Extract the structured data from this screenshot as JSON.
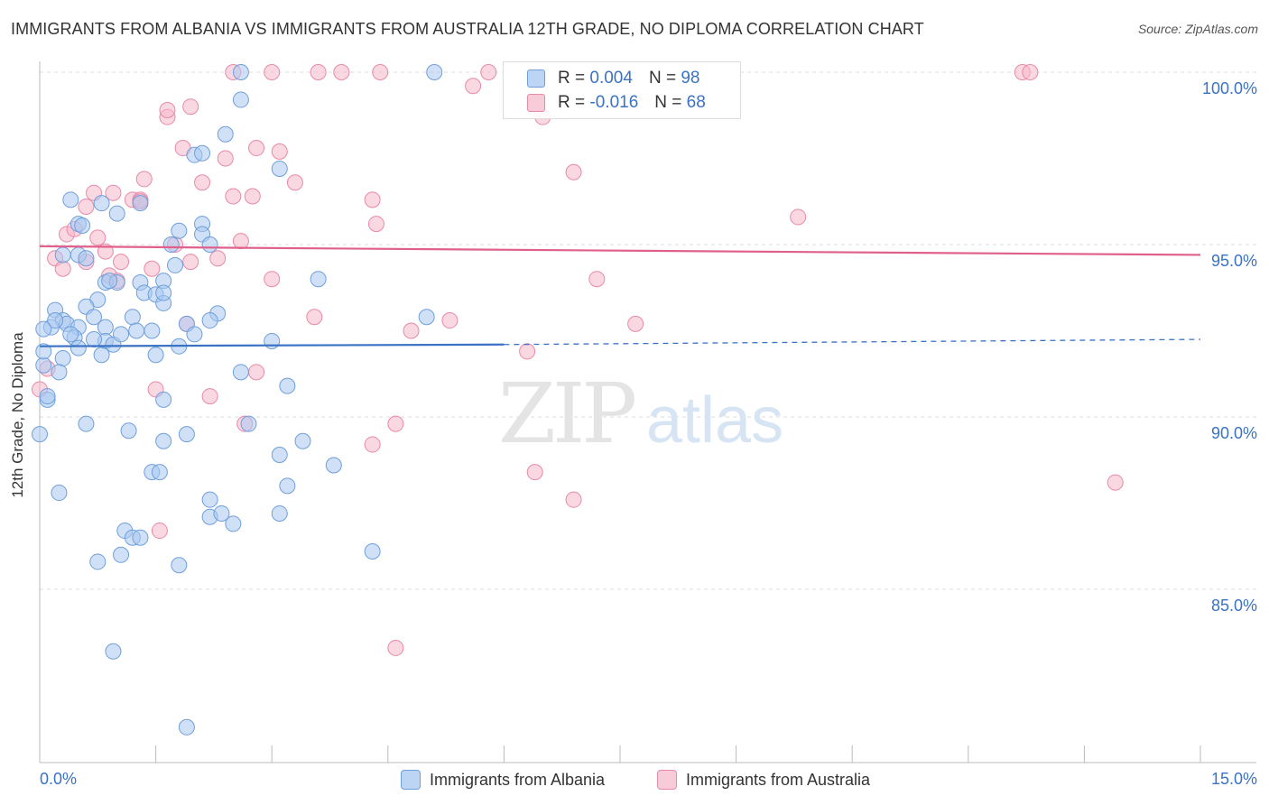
{
  "title": "IMMIGRANTS FROM ALBANIA VS IMMIGRANTS FROM AUSTRALIA 12TH GRADE, NO DIPLOMA CORRELATION CHART",
  "source": "Source: ZipAtlas.com",
  "watermark": {
    "zip": "ZIP",
    "atlas": "atlas"
  },
  "legend": {
    "albania": {
      "r_label": "R =",
      "r_value": "0.004",
      "n_label": "N =",
      "n_value": "98",
      "color": "#a9c8f0"
    },
    "australia": {
      "r_label": "R =",
      "r_value": "-0.016",
      "n_label": "N =",
      "n_value": "68",
      "color": "#f5b8cb"
    }
  },
  "bottom_legend": {
    "albania": "Immigrants from Albania",
    "australia": "Immigrants from Australia"
  },
  "chart_data": {
    "type": "scatter",
    "title": "IMMIGRANTS FROM ALBANIA VS IMMIGRANTS FROM AUSTRALIA 12TH GRADE, NO DIPLOMA CORRELATION CHART",
    "xlabel": "",
    "ylabel": "12th Grade, No Diploma",
    "xlim": [
      0,
      15
    ],
    "ylim": [
      80.5,
      101.2
    ],
    "x_tick_labels": [
      "0.0%",
      "15.0%"
    ],
    "y_ticks": [
      85,
      90,
      95,
      100
    ],
    "y_tick_labels": [
      "85.0%",
      "90.0%",
      "95.0%",
      "100.0%"
    ],
    "grid": true,
    "colors": {
      "albania_fill": "#a9c8f0",
      "albania_stroke": "#6f9fdb",
      "albania_line": "#3a72c4",
      "australia_fill": "#f5b8cb",
      "australia_stroke": "#e88aa8",
      "australia_line": "#e0608c",
      "axis_text": "#3a72c4"
    },
    "series": [
      {
        "name": "Immigrants from Albania",
        "trend": {
          "x0": 0,
          "y0": 92.05,
          "x1": 6.0,
          "y1": 92.1,
          "dash_x1": 15,
          "dash_y1": 92.25
        },
        "points": [
          [
            2.6,
            100.0
          ],
          [
            5.1,
            100.0
          ],
          [
            2.6,
            99.2
          ],
          [
            2.4,
            98.2
          ],
          [
            2.0,
            97.6
          ],
          [
            3.1,
            97.2
          ],
          [
            0.4,
            96.3
          ],
          [
            0.8,
            96.2
          ],
          [
            1.3,
            96.2
          ],
          [
            1.0,
            95.9
          ],
          [
            0.5,
            95.6
          ],
          [
            2.1,
            95.6
          ],
          [
            1.8,
            95.4
          ],
          [
            2.1,
            95.3
          ],
          [
            1.7,
            95.0
          ],
          [
            2.2,
            95.0
          ],
          [
            0.5,
            94.7
          ],
          [
            0.6,
            94.6
          ],
          [
            0.85,
            93.9
          ],
          [
            1.0,
            93.9
          ],
          [
            1.3,
            93.9
          ],
          [
            1.6,
            93.95
          ],
          [
            3.6,
            94.0
          ],
          [
            1.35,
            93.6
          ],
          [
            1.5,
            93.55
          ],
          [
            1.6,
            93.3
          ],
          [
            0.75,
            93.4
          ],
          [
            0.6,
            93.2
          ],
          [
            0.2,
            93.1
          ],
          [
            0.7,
            92.9
          ],
          [
            1.2,
            92.9
          ],
          [
            2.3,
            93.0
          ],
          [
            2.2,
            92.8
          ],
          [
            0.3,
            92.8
          ],
          [
            0.35,
            92.7
          ],
          [
            0.5,
            92.6
          ],
          [
            0.85,
            92.6
          ],
          [
            1.25,
            92.5
          ],
          [
            1.45,
            92.5
          ],
          [
            1.9,
            92.7
          ],
          [
            2.0,
            92.4
          ],
          [
            5.0,
            92.9
          ],
          [
            0.15,
            92.6
          ],
          [
            0.45,
            92.3
          ],
          [
            0.85,
            92.2
          ],
          [
            0.95,
            92.1
          ],
          [
            1.8,
            92.05
          ],
          [
            3.0,
            92.2
          ],
          [
            0.4,
            92.4
          ],
          [
            0.7,
            92.25
          ],
          [
            0.3,
            91.7
          ],
          [
            0.05,
            91.5
          ],
          [
            0.25,
            91.3
          ],
          [
            0.05,
            91.9
          ],
          [
            1.5,
            91.8
          ],
          [
            0.8,
            91.8
          ],
          [
            2.6,
            91.3
          ],
          [
            3.2,
            90.9
          ],
          [
            0.1,
            90.5
          ],
          [
            1.6,
            90.5
          ],
          [
            0.6,
            89.8
          ],
          [
            1.15,
            89.6
          ],
          [
            1.6,
            89.3
          ],
          [
            1.9,
            89.5
          ],
          [
            2.7,
            89.8
          ],
          [
            3.4,
            89.3
          ],
          [
            3.1,
            88.9
          ],
          [
            3.8,
            88.6
          ],
          [
            1.45,
            88.4
          ],
          [
            1.55,
            88.4
          ],
          [
            3.2,
            88.0
          ],
          [
            0.25,
            87.8
          ],
          [
            2.2,
            87.6
          ],
          [
            2.2,
            87.1
          ],
          [
            2.5,
            86.9
          ],
          [
            3.1,
            87.2
          ],
          [
            2.35,
            87.2
          ],
          [
            1.1,
            86.7
          ],
          [
            1.2,
            86.5
          ],
          [
            1.3,
            86.5
          ],
          [
            1.05,
            86.0
          ],
          [
            4.3,
            86.1
          ],
          [
            0.75,
            85.8
          ],
          [
            1.8,
            85.7
          ],
          [
            0.95,
            83.2
          ],
          [
            1.9,
            81.0
          ],
          [
            0.0,
            89.5
          ],
          [
            0.1,
            90.6
          ],
          [
            0.2,
            92.8
          ],
          [
            1.6,
            93.6
          ],
          [
            0.5,
            92.0
          ],
          [
            1.05,
            92.4
          ],
          [
            0.3,
            94.7
          ],
          [
            0.9,
            93.95
          ],
          [
            2.1,
            97.65
          ],
          [
            0.55,
            95.55
          ],
          [
            0.05,
            92.55
          ],
          [
            1.75,
            94.4
          ]
        ]
      },
      {
        "name": "Immigrants from Australia",
        "trend": {
          "x0": 0,
          "y0": 94.95,
          "x1": 15,
          "y1": 94.7
        },
        "points": [
          [
            2.5,
            100.0
          ],
          [
            3.0,
            100.0
          ],
          [
            3.6,
            100.0
          ],
          [
            3.9,
            100.0
          ],
          [
            4.4,
            100.0
          ],
          [
            5.8,
            100.0
          ],
          [
            12.7,
            100.0
          ],
          [
            12.8,
            100.0
          ],
          [
            5.6,
            99.6
          ],
          [
            6.5,
            98.7
          ],
          [
            1.65,
            98.7
          ],
          [
            1.65,
            98.9
          ],
          [
            1.95,
            99.0
          ],
          [
            1.85,
            97.8
          ],
          [
            2.8,
            97.8
          ],
          [
            3.1,
            97.7
          ],
          [
            2.4,
            97.5
          ],
          [
            6.9,
            97.1
          ],
          [
            1.35,
            96.9
          ],
          [
            2.1,
            96.8
          ],
          [
            3.3,
            96.8
          ],
          [
            0.7,
            96.5
          ],
          [
            0.95,
            96.5
          ],
          [
            2.5,
            96.4
          ],
          [
            2.75,
            96.4
          ],
          [
            1.2,
            96.3
          ],
          [
            1.3,
            96.3
          ],
          [
            0.6,
            96.1
          ],
          [
            4.3,
            96.3
          ],
          [
            4.35,
            95.6
          ],
          [
            9.8,
            95.8
          ],
          [
            0.35,
            95.3
          ],
          [
            0.45,
            95.45
          ],
          [
            0.75,
            95.2
          ],
          [
            1.75,
            95.0
          ],
          [
            2.6,
            95.1
          ],
          [
            0.85,
            94.8
          ],
          [
            0.6,
            94.5
          ],
          [
            0.2,
            94.6
          ],
          [
            1.05,
            94.5
          ],
          [
            1.95,
            94.5
          ],
          [
            2.3,
            94.6
          ],
          [
            0.3,
            94.3
          ],
          [
            1.45,
            94.3
          ],
          [
            0.9,
            94.1
          ],
          [
            3.0,
            94.0
          ],
          [
            7.2,
            94.0
          ],
          [
            1.0,
            93.95
          ],
          [
            3.55,
            92.9
          ],
          [
            5.3,
            92.8
          ],
          [
            7.7,
            92.7
          ],
          [
            4.8,
            92.5
          ],
          [
            1.9,
            92.7
          ],
          [
            6.3,
            91.9
          ],
          [
            0.1,
            91.4
          ],
          [
            2.8,
            91.3
          ],
          [
            1.5,
            90.8
          ],
          [
            2.2,
            90.6
          ],
          [
            4.6,
            89.8
          ],
          [
            2.65,
            89.8
          ],
          [
            4.3,
            89.2
          ],
          [
            6.4,
            88.4
          ],
          [
            6.9,
            87.6
          ],
          [
            13.9,
            88.1
          ],
          [
            1.55,
            86.7
          ],
          [
            4.6,
            83.3
          ],
          [
            0.0,
            90.8
          ],
          [
            1.3,
            96.25
          ]
        ]
      }
    ]
  }
}
